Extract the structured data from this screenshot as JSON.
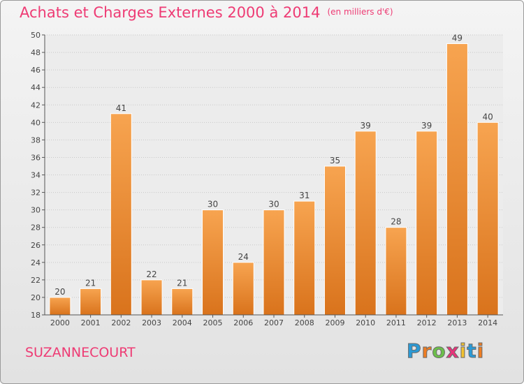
{
  "header": {
    "title": "Achats et Charges Externes 2000 à 2014",
    "unit": "(en milliers d'€)"
  },
  "footer": {
    "commune": "SUZANNECOURT",
    "logo_letters": [
      {
        "ch": "P",
        "color": "#2a9ad6"
      },
      {
        "ch": "r",
        "color": "#ef7d22"
      },
      {
        "ch": "o",
        "color": "#6cc04a"
      },
      {
        "ch": "x",
        "color": "#e8337a"
      },
      {
        "ch": "i",
        "color": "#f2c230"
      },
      {
        "ch": "t",
        "color": "#2a9ad6"
      },
      {
        "ch": "i",
        "color": "#ef7d22"
      }
    ]
  },
  "chart_data": {
    "type": "bar",
    "title": "Achats et Charges Externes 2000 à 2014",
    "subtitle": "(en milliers d'€)",
    "categories": [
      "2000",
      "2001",
      "2002",
      "2003",
      "2004",
      "2005",
      "2006",
      "2007",
      "2008",
      "2009",
      "2010",
      "2011",
      "2012",
      "2013",
      "2014"
    ],
    "values": [
      20,
      21,
      41,
      22,
      21,
      30,
      24,
      30,
      31,
      35,
      39,
      28,
      39,
      49,
      40
    ],
    "ylim": [
      18,
      50
    ],
    "yticks": [
      18,
      20,
      22,
      24,
      26,
      28,
      30,
      32,
      34,
      36,
      38,
      40,
      42,
      44,
      46,
      48,
      50
    ],
    "grid": true,
    "data_labels": true,
    "bar_color_light": "#f7a450",
    "bar_color_dark": "#d9731c"
  }
}
